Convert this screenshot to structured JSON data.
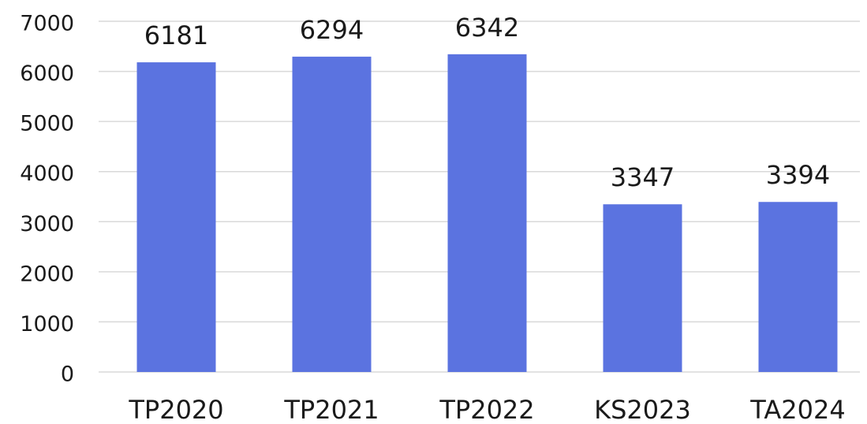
{
  "chart_data": {
    "type": "bar",
    "categories": [
      "TP2020",
      "TP2021",
      "TP2022",
      "KS2023",
      "TA2024"
    ],
    "values": [
      6181,
      6294,
      6342,
      3347,
      3394
    ],
    "color": "#5b73e0",
    "ylim": [
      0,
      7000
    ],
    "yticks": [
      0,
      1000,
      2000,
      3000,
      4000,
      5000,
      6000,
      7000
    ],
    "grid": true
  }
}
